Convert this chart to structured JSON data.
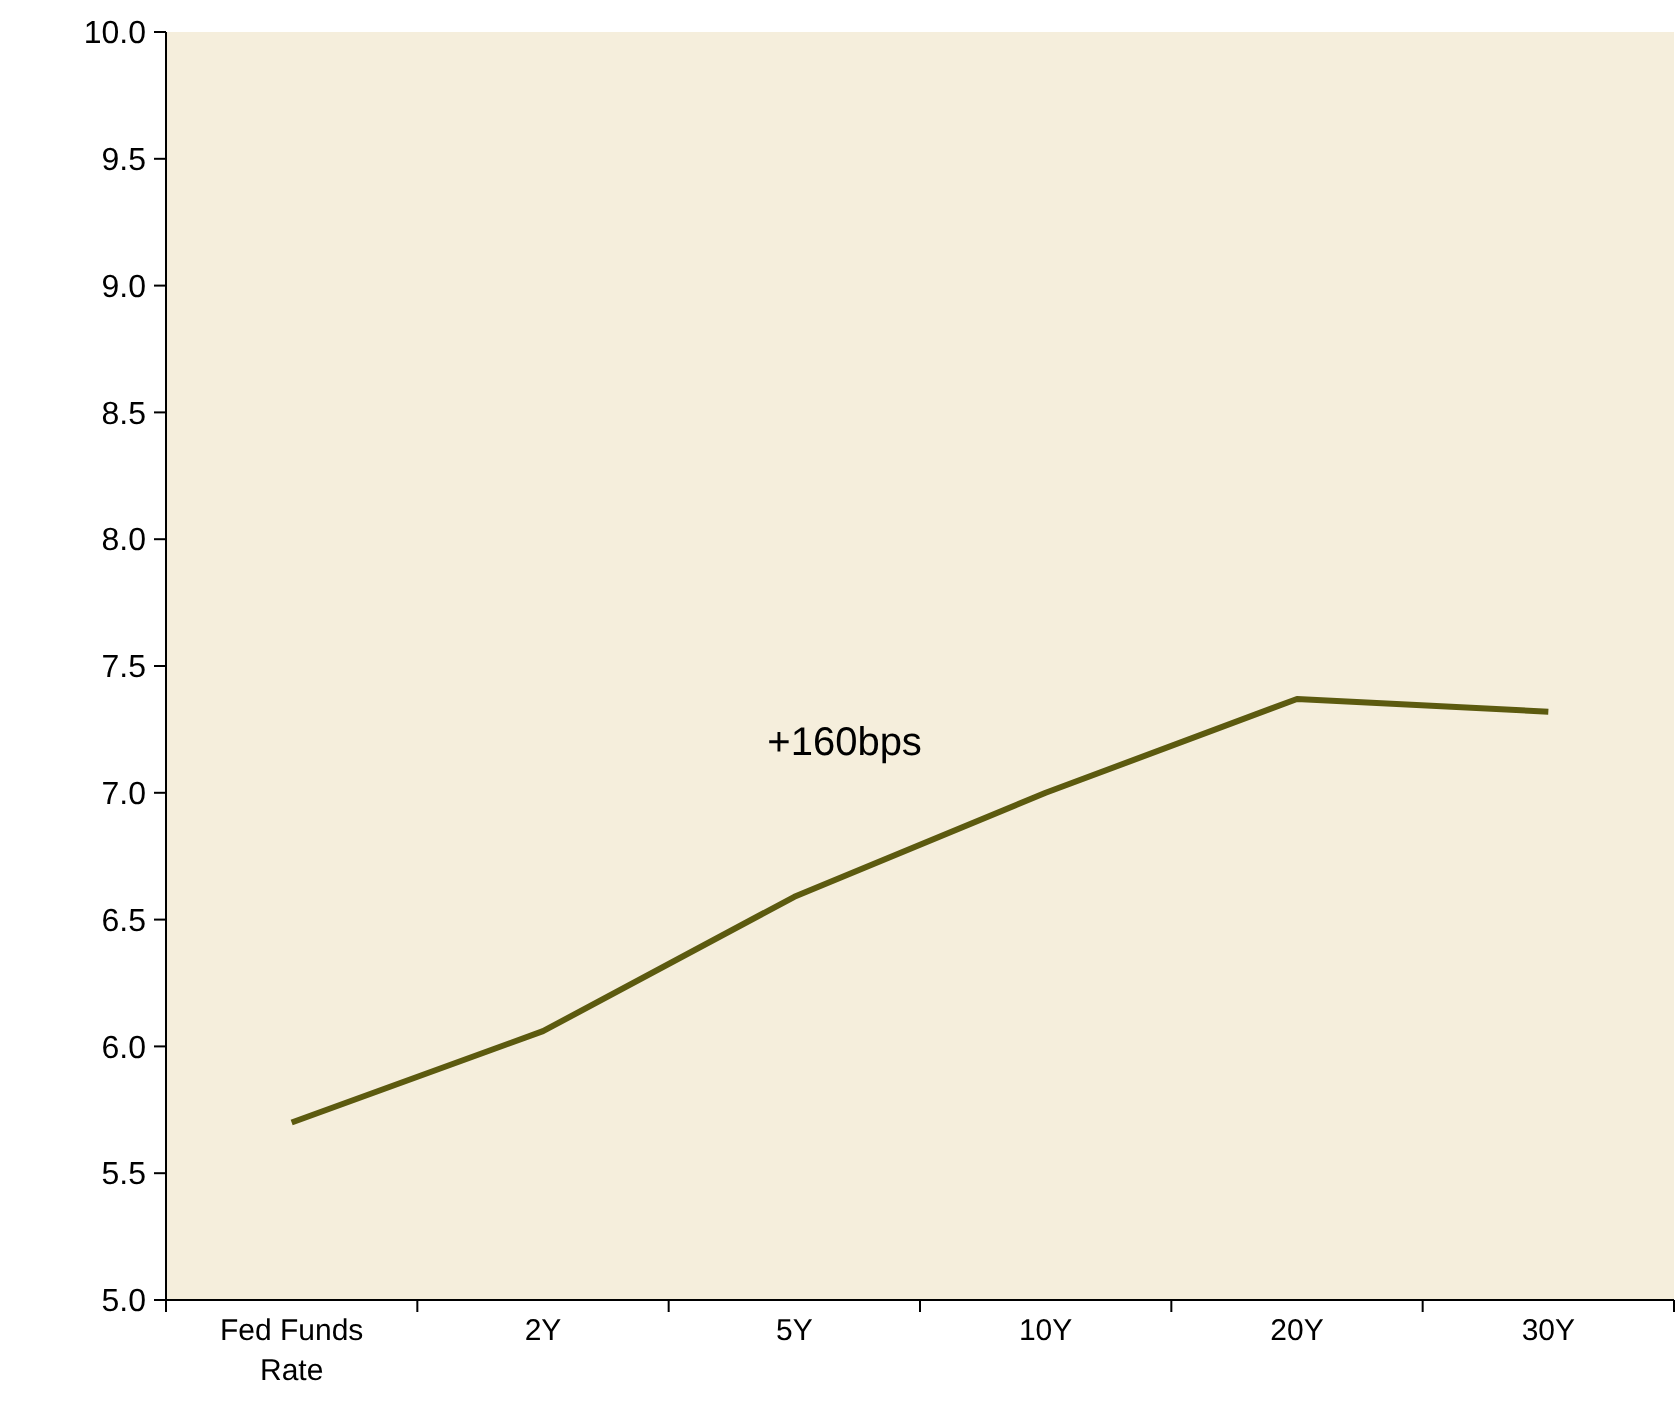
{
  "chart_data": {
    "type": "line",
    "categories": [
      "Fed Funds Rate",
      "2Y",
      "5Y",
      "10Y",
      "20Y",
      "30Y"
    ],
    "series": [
      {
        "color": "#5c5a0f",
        "values": [
          5.7,
          6.06,
          6.59,
          7.0,
          7.37,
          7.32
        ]
      }
    ],
    "ylim": [
      5,
      10
    ],
    "yticks": [
      {
        "value": 5,
        "label": "5.0"
      },
      {
        "value": 5.5,
        "label": "5.5"
      },
      {
        "value": 6,
        "label": "6.0"
      },
      {
        "value": 6.5,
        "label": "6.5"
      },
      {
        "value": 7,
        "label": "7.0"
      },
      {
        "value": 7.5,
        "label": "7.5"
      },
      {
        "value": 8,
        "label": "8.0"
      },
      {
        "value": 8.5,
        "label": "8.5"
      },
      {
        "value": 9,
        "label": "9.0"
      },
      {
        "value": 9.5,
        "label": "9.5"
      },
      {
        "value": 10,
        "label": "10.0"
      }
    ],
    "annotations": [
      "+160bps"
    ],
    "grid": false,
    "marker": "none",
    "line_style": "solid"
  }
}
